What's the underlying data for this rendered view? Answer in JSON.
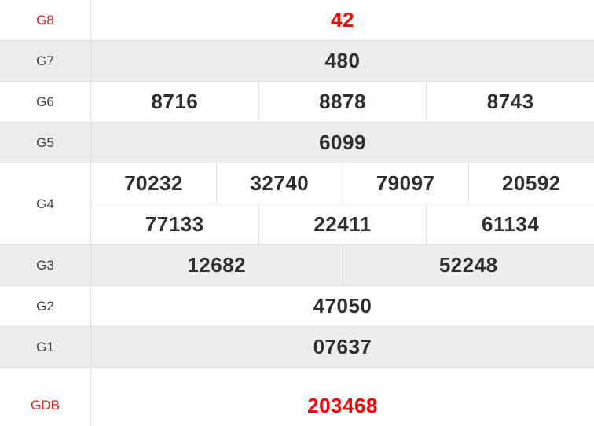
{
  "table": {
    "title": "lottery-results",
    "colors": {
      "highlight_value": "#ff0000",
      "highlight_label": "#e21b1b",
      "value_text": "#2f2f2f",
      "label_text": "#444444",
      "stripe_background": "#ececec",
      "border": "#dddddd"
    },
    "rows": [
      {
        "label": "G8",
        "highlight": true,
        "sub_rows": [
          [
            "42"
          ]
        ]
      },
      {
        "label": "G7",
        "highlight": false,
        "sub_rows": [
          [
            "480"
          ]
        ]
      },
      {
        "label": "G6",
        "highlight": false,
        "sub_rows": [
          [
            "8716",
            "8878",
            "8743"
          ]
        ]
      },
      {
        "label": "G5",
        "highlight": false,
        "sub_rows": [
          [
            "6099"
          ]
        ]
      },
      {
        "label": "G4",
        "highlight": false,
        "sub_rows": [
          [
            "70232",
            "32740",
            "79097",
            "20592"
          ],
          [
            "77133",
            "22411",
            "61134"
          ]
        ]
      },
      {
        "label": "G3",
        "highlight": false,
        "sub_rows": [
          [
            "12682",
            "52248"
          ]
        ]
      },
      {
        "label": "G2",
        "highlight": false,
        "sub_rows": [
          [
            "47050"
          ]
        ]
      },
      {
        "label": "G1",
        "highlight": false,
        "sub_rows": [
          [
            "07637"
          ]
        ]
      },
      {
        "label": "GDB",
        "highlight": true,
        "sub_rows": [
          [
            "203468"
          ]
        ]
      }
    ]
  }
}
